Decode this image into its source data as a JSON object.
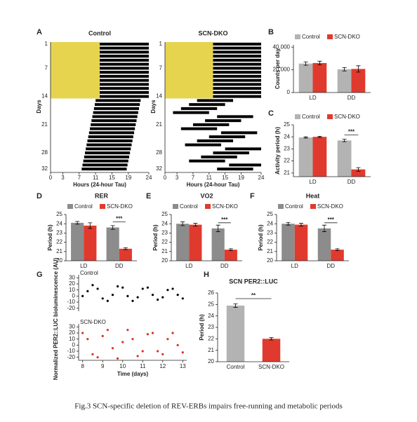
{
  "chart_data": [
    {
      "type": "actogram",
      "panel": "A",
      "title": "Control",
      "ylabel": "Days",
      "xlabel": "Hours (24-hour Tau)",
      "xlim": [
        0,
        24
      ],
      "ylim": [
        1,
        32
      ],
      "xticks": [
        0,
        3,
        7,
        11,
        15,
        19,
        24
      ],
      "yticks": [
        1,
        7,
        14,
        21,
        28,
        32
      ],
      "light": {
        "days": [
          1,
          14
        ],
        "hours": [
          0,
          12
        ]
      },
      "light_color": "#e6d44e",
      "color": "#000000",
      "onset": [
        12,
        12,
        12,
        12,
        12,
        12,
        12,
        12,
        12,
        12,
        12,
        12,
        12,
        12,
        11,
        10.8,
        10.6,
        10.4,
        10.2,
        10,
        9.8,
        9.6,
        9.4,
        9.2,
        9,
        8.8,
        8.6,
        8.4,
        8.2,
        8,
        7.8,
        7.6
      ],
      "offset": [
        24,
        24,
        24,
        24,
        24,
        24,
        24,
        24,
        24,
        24,
        24,
        24,
        24,
        24,
        22,
        21.8,
        21.6,
        21.4,
        21.2,
        21,
        20.8,
        20.6,
        20.4,
        20.2,
        20,
        19.8,
        19.6,
        19.4,
        19.2,
        19,
        18.8,
        18.6
      ]
    },
    {
      "type": "actogram",
      "title": "SCN-DKO",
      "ylabel": "Days",
      "xlabel": "Hours (24-hour Tau)",
      "xlim": [
        0,
        24
      ],
      "ylim": [
        1,
        32
      ],
      "xticks": [
        0,
        3,
        7,
        11,
        15,
        19,
        24
      ],
      "yticks": [
        1,
        7,
        14,
        21,
        28,
        32
      ],
      "light": {
        "days": [
          1,
          14
        ],
        "hours": [
          0,
          12
        ]
      },
      "light_color": "#e6d44e",
      "color": "#000000",
      "onset": [
        12,
        12,
        12,
        12,
        12,
        12,
        12,
        12,
        12,
        12,
        12,
        12,
        12,
        12,
        8,
        6,
        4,
        2,
        13,
        10,
        7,
        4,
        14,
        11,
        8,
        5,
        15,
        12,
        9,
        6,
        16,
        13
      ],
      "offset": [
        24,
        24,
        24,
        24,
        24,
        24,
        24,
        24,
        24,
        24,
        24,
        24,
        24,
        24,
        17,
        15,
        13,
        11,
        22,
        19,
        16,
        13,
        23,
        20,
        17,
        14,
        24,
        21,
        18,
        15,
        24,
        22
      ]
    },
    {
      "type": "bar",
      "panel": "B",
      "ylabel": "Counts per day",
      "categories": [
        "LD",
        "DD"
      ],
      "series": [
        {
          "name": "Control",
          "color": "#b3b3b3",
          "values": [
            25500,
            20500
          ],
          "errors": [
            1500,
            1500
          ]
        },
        {
          "name": "SCN-DKO",
          "color": "#e03a2e",
          "values": [
            26000,
            20800
          ],
          "errors": [
            1600,
            2800
          ]
        }
      ],
      "ylim": [
        0,
        42000
      ],
      "yticks": [
        0,
        {
          "value": 20000,
          "label": "20,000"
        },
        {
          "value": 40000,
          "label": "40,000"
        }
      ]
    },
    {
      "type": "bar",
      "panel": "C",
      "ylabel": "Activity period (h)",
      "categories": [
        "LD",
        "DD"
      ],
      "series": [
        {
          "name": "Control",
          "color": "#b3b3b3",
          "values": [
            23.95,
            23.7
          ],
          "errors": [
            0.05,
            0.1
          ]
        },
        {
          "name": "SCN-DKO",
          "color": "#e03a2e",
          "values": [
            24.0,
            21.3
          ],
          "errors": [
            0.05,
            0.15
          ]
        }
      ],
      "ylim": [
        20.7,
        25
      ],
      "yticks": [
        21,
        22,
        23,
        24,
        25
      ],
      "annotation": "***"
    },
    {
      "type": "bar",
      "panel": "D",
      "title": "RER",
      "ylabel": "Period (h)",
      "categories": [
        "LD",
        "DD"
      ],
      "series": [
        {
          "name": "Control",
          "color": "#8c8c8c",
          "values": [
            24.1,
            23.6
          ],
          "errors": [
            0.15,
            0.2
          ]
        },
        {
          "name": "SCN-DKO",
          "color": "#e03a2e",
          "values": [
            23.8,
            21.3
          ],
          "errors": [
            0.3,
            0.1
          ]
        }
      ],
      "ylim": [
        20,
        25
      ],
      "yticks": [
        20,
        21,
        22,
        23,
        24,
        25
      ],
      "annotation": "***"
    },
    {
      "type": "bar",
      "panel": "E",
      "title": "VO2",
      "ylabel": "Period (h)",
      "categories": [
        "LD",
        "DD"
      ],
      "series": [
        {
          "name": "Control",
          "color": "#8c8c8c",
          "values": [
            24.0,
            23.5
          ],
          "errors": [
            0.2,
            0.35
          ]
        },
        {
          "name": "SCN-DKO",
          "color": "#e03a2e",
          "values": [
            23.9,
            21.2
          ],
          "errors": [
            0.15,
            0.1
          ]
        }
      ],
      "ylim": [
        20,
        25
      ],
      "yticks": [
        20,
        21,
        22,
        23,
        24,
        25
      ],
      "annotation": "***"
    },
    {
      "type": "bar",
      "panel": "F",
      "title": "Heat",
      "ylabel": "Period (h)",
      "categories": [
        "LD",
        "DD"
      ],
      "series": [
        {
          "name": "Control",
          "color": "#8c8c8c",
          "values": [
            24.0,
            23.5
          ],
          "errors": [
            0.15,
            0.35
          ]
        },
        {
          "name": "SCN-DKO",
          "color": "#e03a2e",
          "values": [
            23.9,
            21.2
          ],
          "errors": [
            0.15,
            0.1
          ]
        }
      ],
      "ylim": [
        20,
        25
      ],
      "yticks": [
        20,
        21,
        22,
        23,
        24,
        25
      ],
      "annotation": "***"
    },
    {
      "type": "line",
      "panel": "G",
      "title": "Control",
      "ylabel": "Normalized PER2::LUC bioluminescence (AU)",
      "color": "#000000",
      "x": [
        8,
        8.25,
        8.5,
        8.75,
        9,
        9.25,
        9.5,
        9.75,
        10,
        10.25,
        10.5,
        10.75,
        11,
        11.25,
        11.5,
        11.75,
        12,
        12.25,
        12.5,
        12.75,
        13
      ],
      "values": [
        0,
        8,
        18,
        12,
        -4,
        -8,
        2,
        16,
        14,
        0,
        -8,
        -2,
        12,
        14,
        2,
        -6,
        -2,
        10,
        12,
        2,
        -4
      ],
      "xlim": [
        7.8,
        13.2
      ],
      "ylim": [
        -25,
        35
      ],
      "yticks": [
        -20,
        -10,
        0,
        10,
        20,
        30
      ]
    },
    {
      "type": "line",
      "title": "SCN-DKO",
      "xlabel": "Time (days)",
      "color": "#d93025",
      "x": [
        8,
        8.25,
        8.5,
        8.75,
        9,
        9.25,
        9.5,
        9.75,
        10,
        10.25,
        10.5,
        10.75,
        11,
        11.25,
        11.5,
        11.75,
        12,
        12.25,
        12.5,
        12.75,
        13
      ],
      "values": [
        20,
        10,
        -15,
        -20,
        15,
        25,
        -5,
        -22,
        5,
        25,
        10,
        -18,
        -10,
        18,
        20,
        -10,
        -15,
        10,
        20,
        0,
        -12
      ],
      "xlim": [
        7.8,
        13.2
      ],
      "ylim": [
        -25,
        35
      ],
      "xticks": [
        8,
        9,
        10,
        11,
        12,
        13
      ],
      "yticks": [
        -20,
        -10,
        0,
        10,
        20,
        30
      ]
    },
    {
      "type": "bar",
      "panel": "H",
      "title": "SCN PER2::LUC",
      "ylabel": "Period (h)",
      "categories": [
        "Control",
        "SCN-DKO"
      ],
      "values": [
        24.9,
        22.0
      ],
      "errors": [
        0.15,
        0.1
      ],
      "colors": [
        "#b3b3b3",
        "#e03a2e"
      ],
      "ylim": [
        20,
        26
      ],
      "yticks": [
        20,
        21,
        22,
        23,
        24,
        25,
        26
      ],
      "annotation": "**"
    }
  ],
  "caption": "Fig.3 SCN-specific deletion of REV-ERBs impairs free-running and metabolic periods"
}
